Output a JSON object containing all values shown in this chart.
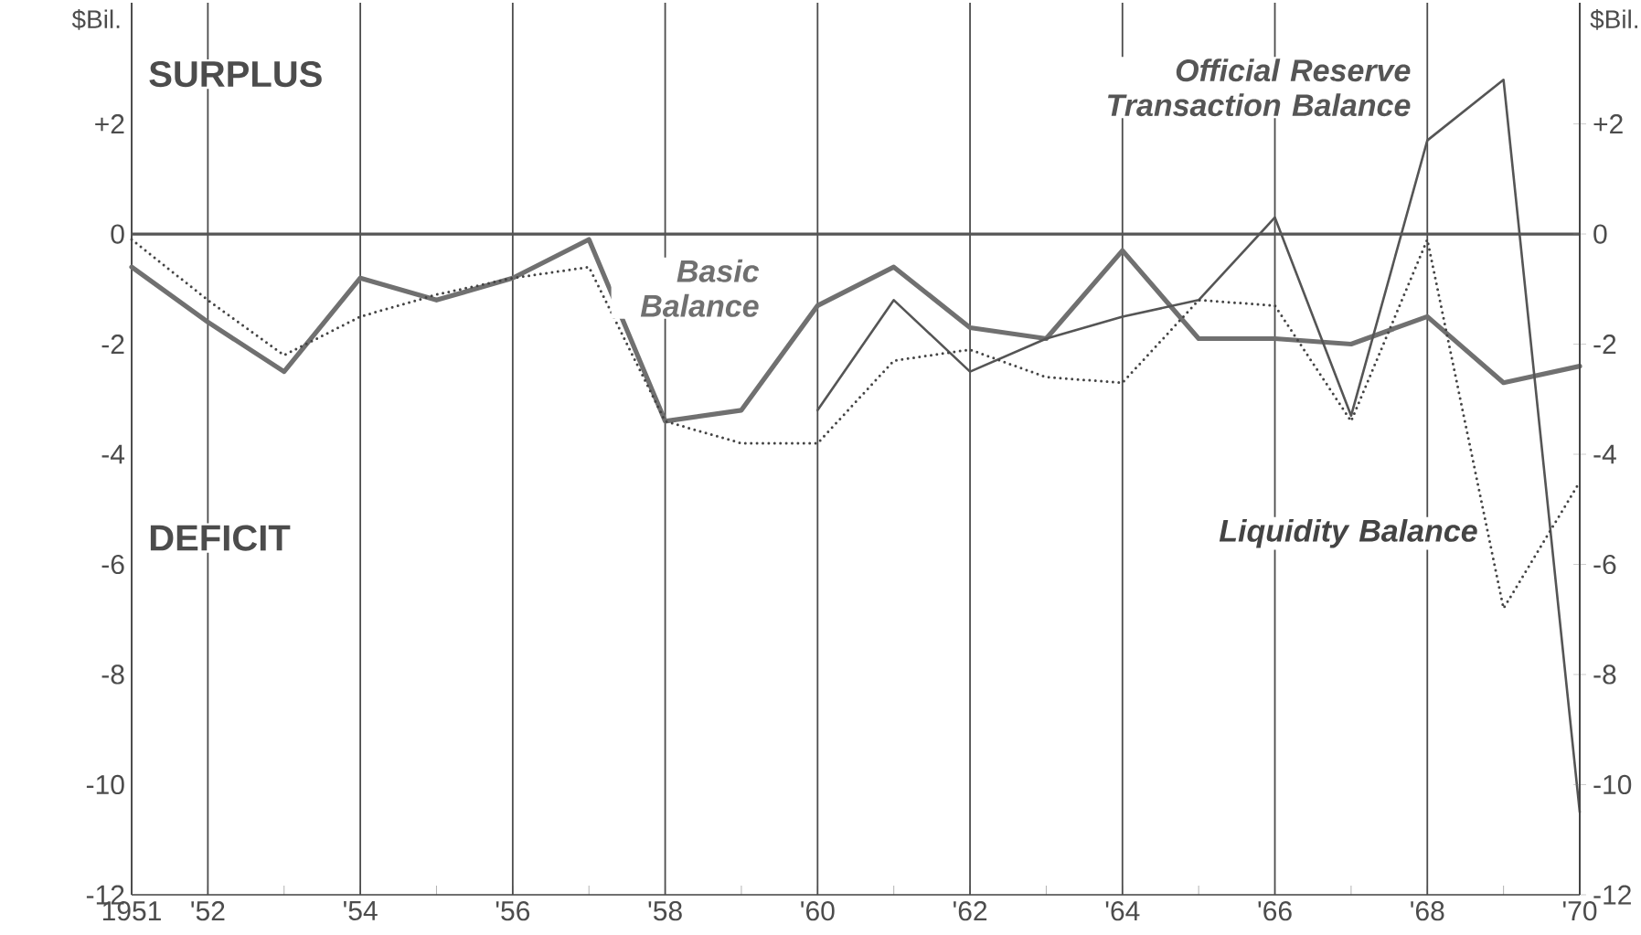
{
  "chart_data": {
    "type": "line",
    "ylabel": "$Bil.",
    "y2label": "$Bil.",
    "x": [
      1951,
      1952,
      1953,
      1954,
      1955,
      1956,
      1957,
      1958,
      1959,
      1960,
      1961,
      1962,
      1963,
      1964,
      1965,
      1966,
      1967,
      1968,
      1969,
      1970
    ],
    "series": [
      {
        "name": "Basic Balance",
        "color": "#707070",
        "line_style": "solid",
        "values": [
          -0.6,
          -1.6,
          -2.5,
          -0.8,
          -1.2,
          -0.8,
          -0.1,
          -3.4,
          -3.2,
          -1.3,
          -0.6,
          -1.7,
          -1.9,
          -0.3,
          -1.9,
          -1.9,
          -2.0,
          -1.5,
          -2.7,
          -2.4
        ]
      },
      {
        "name": "Official Reserve Transaction Balance",
        "color": "#555555",
        "line_style": "solid",
        "values": [
          null,
          null,
          null,
          null,
          null,
          null,
          null,
          null,
          null,
          -3.2,
          -1.2,
          -2.5,
          -1.9,
          -1.5,
          -1.2,
          0.3,
          -3.3,
          1.7,
          2.8,
          -10.5
        ]
      },
      {
        "name": "Liquidity Balance",
        "color": "#444444",
        "line_style": "dotted",
        "values": [
          -0.1,
          -1.2,
          -2.2,
          -1.5,
          -1.1,
          -0.8,
          -0.6,
          -3.4,
          -3.8,
          -3.8,
          -2.3,
          -2.1,
          -2.6,
          -2.7,
          -1.2,
          -1.3,
          -3.4,
          -0.1,
          -6.8,
          -4.5
        ]
      }
    ],
    "xlim": [
      1951,
      1970
    ],
    "ylim": [
      -12,
      4.2
    ],
    "y2lim": [
      -12,
      4.2
    ],
    "xticks": [
      1951,
      {
        "value": 1952,
        "label": "'52"
      },
      {
        "value": 1953,
        "label": null
      },
      {
        "value": 1954,
        "label": "'54"
      },
      {
        "value": 1955,
        "label": null
      },
      {
        "value": 1956,
        "label": "'56"
      },
      {
        "value": 1957,
        "label": null
      },
      {
        "value": 1958,
        "label": "'58"
      },
      {
        "value": 1959,
        "label": null
      },
      {
        "value": 1960,
        "label": "'60"
      },
      {
        "value": 1961,
        "label": null
      },
      {
        "value": 1962,
        "label": "'62"
      },
      {
        "value": 1963,
        "label": null
      },
      {
        "value": 1964,
        "label": "'64"
      },
      {
        "value": 1965,
        "label": null
      },
      {
        "value": 1966,
        "label": "'66"
      },
      {
        "value": 1967,
        "label": null
      },
      {
        "value": 1968,
        "label": "'68"
      },
      {
        "value": 1969,
        "label": null
      },
      {
        "value": 1970,
        "label": "'70"
      }
    ],
    "yticks": [
      -12,
      -10,
      -8,
      -6,
      -4,
      -2,
      0,
      {
        "value": 2,
        "label": "+2"
      }
    ],
    "y2ticks": [
      -12,
      -10,
      -8,
      -6,
      -4,
      -2,
      0,
      {
        "value": 2,
        "label": "+2"
      }
    ],
    "ref_lines": [
      {
        "axis": "y",
        "value": 0,
        "color": "#555555"
      }
    ],
    "annotations": [
      "SURPLUS",
      "DEFICIT"
    ],
    "grid": "x",
    "marker": "none"
  }
}
